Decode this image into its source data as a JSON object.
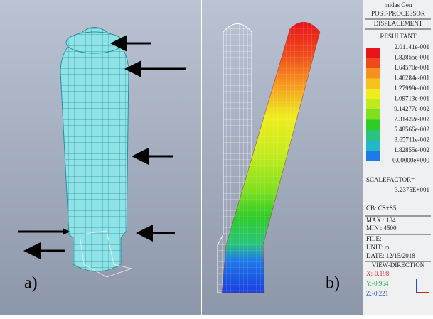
{
  "panels": {
    "left_label": "a)",
    "right_label": "b)"
  },
  "legend": {
    "program": "midas Gen",
    "module": "POST-PROCESSOR",
    "result": "DISPLACEMENT",
    "component": "RESULTANT",
    "levels": [
      {
        "label": "2.01141e-001",
        "color": "#e8141a"
      },
      {
        "label": "1.82855e-001",
        "color": "#f04a1c"
      },
      {
        "label": "1.64570e-001",
        "color": "#f7911e"
      },
      {
        "label": "1.46284e-001",
        "color": "#f7c21e"
      },
      {
        "label": "1.27999e-001",
        "color": "#eeee1c"
      },
      {
        "label": "1.09713e-001",
        "color": "#c0ea1c"
      },
      {
        "label": "9.14277e-002",
        "color": "#7fe01e"
      },
      {
        "label": "7.31422e-002",
        "color": "#2ecc28"
      },
      {
        "label": "5.48566e-002",
        "color": "#28c47c"
      },
      {
        "label": "3.65711e-002",
        "color": "#20b8c8"
      },
      {
        "label": "1.82855e-002",
        "color": "#1e7ae8"
      },
      {
        "label": "0.00000e+000",
        "color": "#1a3ee0"
      }
    ],
    "scalefactor_title": "SCALEFACTOR=",
    "scalefactor": "3.2375E+001",
    "load_case": "CB: CS+S5",
    "max": "MAX : 184",
    "min": "MIN : 4500",
    "file": "FILE:",
    "unit": "UNIT: m",
    "date": "DATE: 12/15/2018",
    "view_title": "VIEW-DIRECTION",
    "view": [
      {
        "label": "X:-0.198",
        "color": "#e03030"
      },
      {
        "label": "Y:-0.954",
        "color": "#20b040"
      },
      {
        "label": "Z:-0.221",
        "color": "#3050e0"
      }
    ]
  }
}
